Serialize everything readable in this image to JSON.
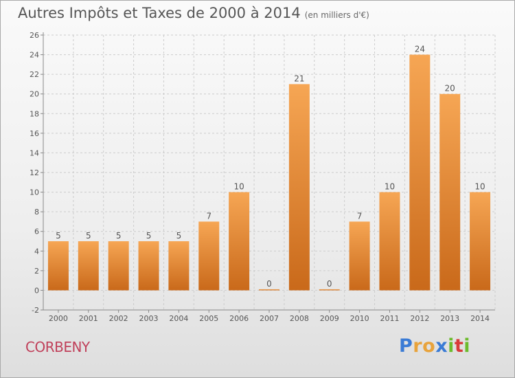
{
  "title": "Autres Impôts et Taxes de 2000 à 2014",
  "unit": "(en milliers d'€)",
  "commune": "CORBENY",
  "brand": {
    "letters": [
      "P",
      "r",
      "o",
      "x",
      "i",
      "t",
      "i"
    ],
    "colors": [
      "#3a7bd5",
      "#e8a33c",
      "#e8a33c",
      "#3a7bd5",
      "#6dbb2d",
      "#d93a3a",
      "#6dbb2d"
    ]
  },
  "colors": {
    "bar_top": "#f6a654",
    "bar_bottom": "#c9691a",
    "grid": "#cccccc"
  },
  "chart_data": {
    "type": "bar",
    "categories": [
      "2000",
      "2001",
      "2002",
      "2003",
      "2004",
      "2005",
      "2006",
      "2007",
      "2008",
      "2009",
      "2010",
      "2011",
      "2012",
      "2013",
      "2014"
    ],
    "values": [
      5,
      5,
      5,
      5,
      5,
      7,
      10,
      0,
      21,
      0,
      7,
      10,
      24,
      20,
      10
    ],
    "ylim": [
      -2,
      26
    ],
    "yticks": [
      -2,
      0,
      2,
      4,
      6,
      8,
      10,
      12,
      14,
      16,
      18,
      20,
      22,
      24,
      26
    ],
    "grid": "horizontal dashed"
  }
}
